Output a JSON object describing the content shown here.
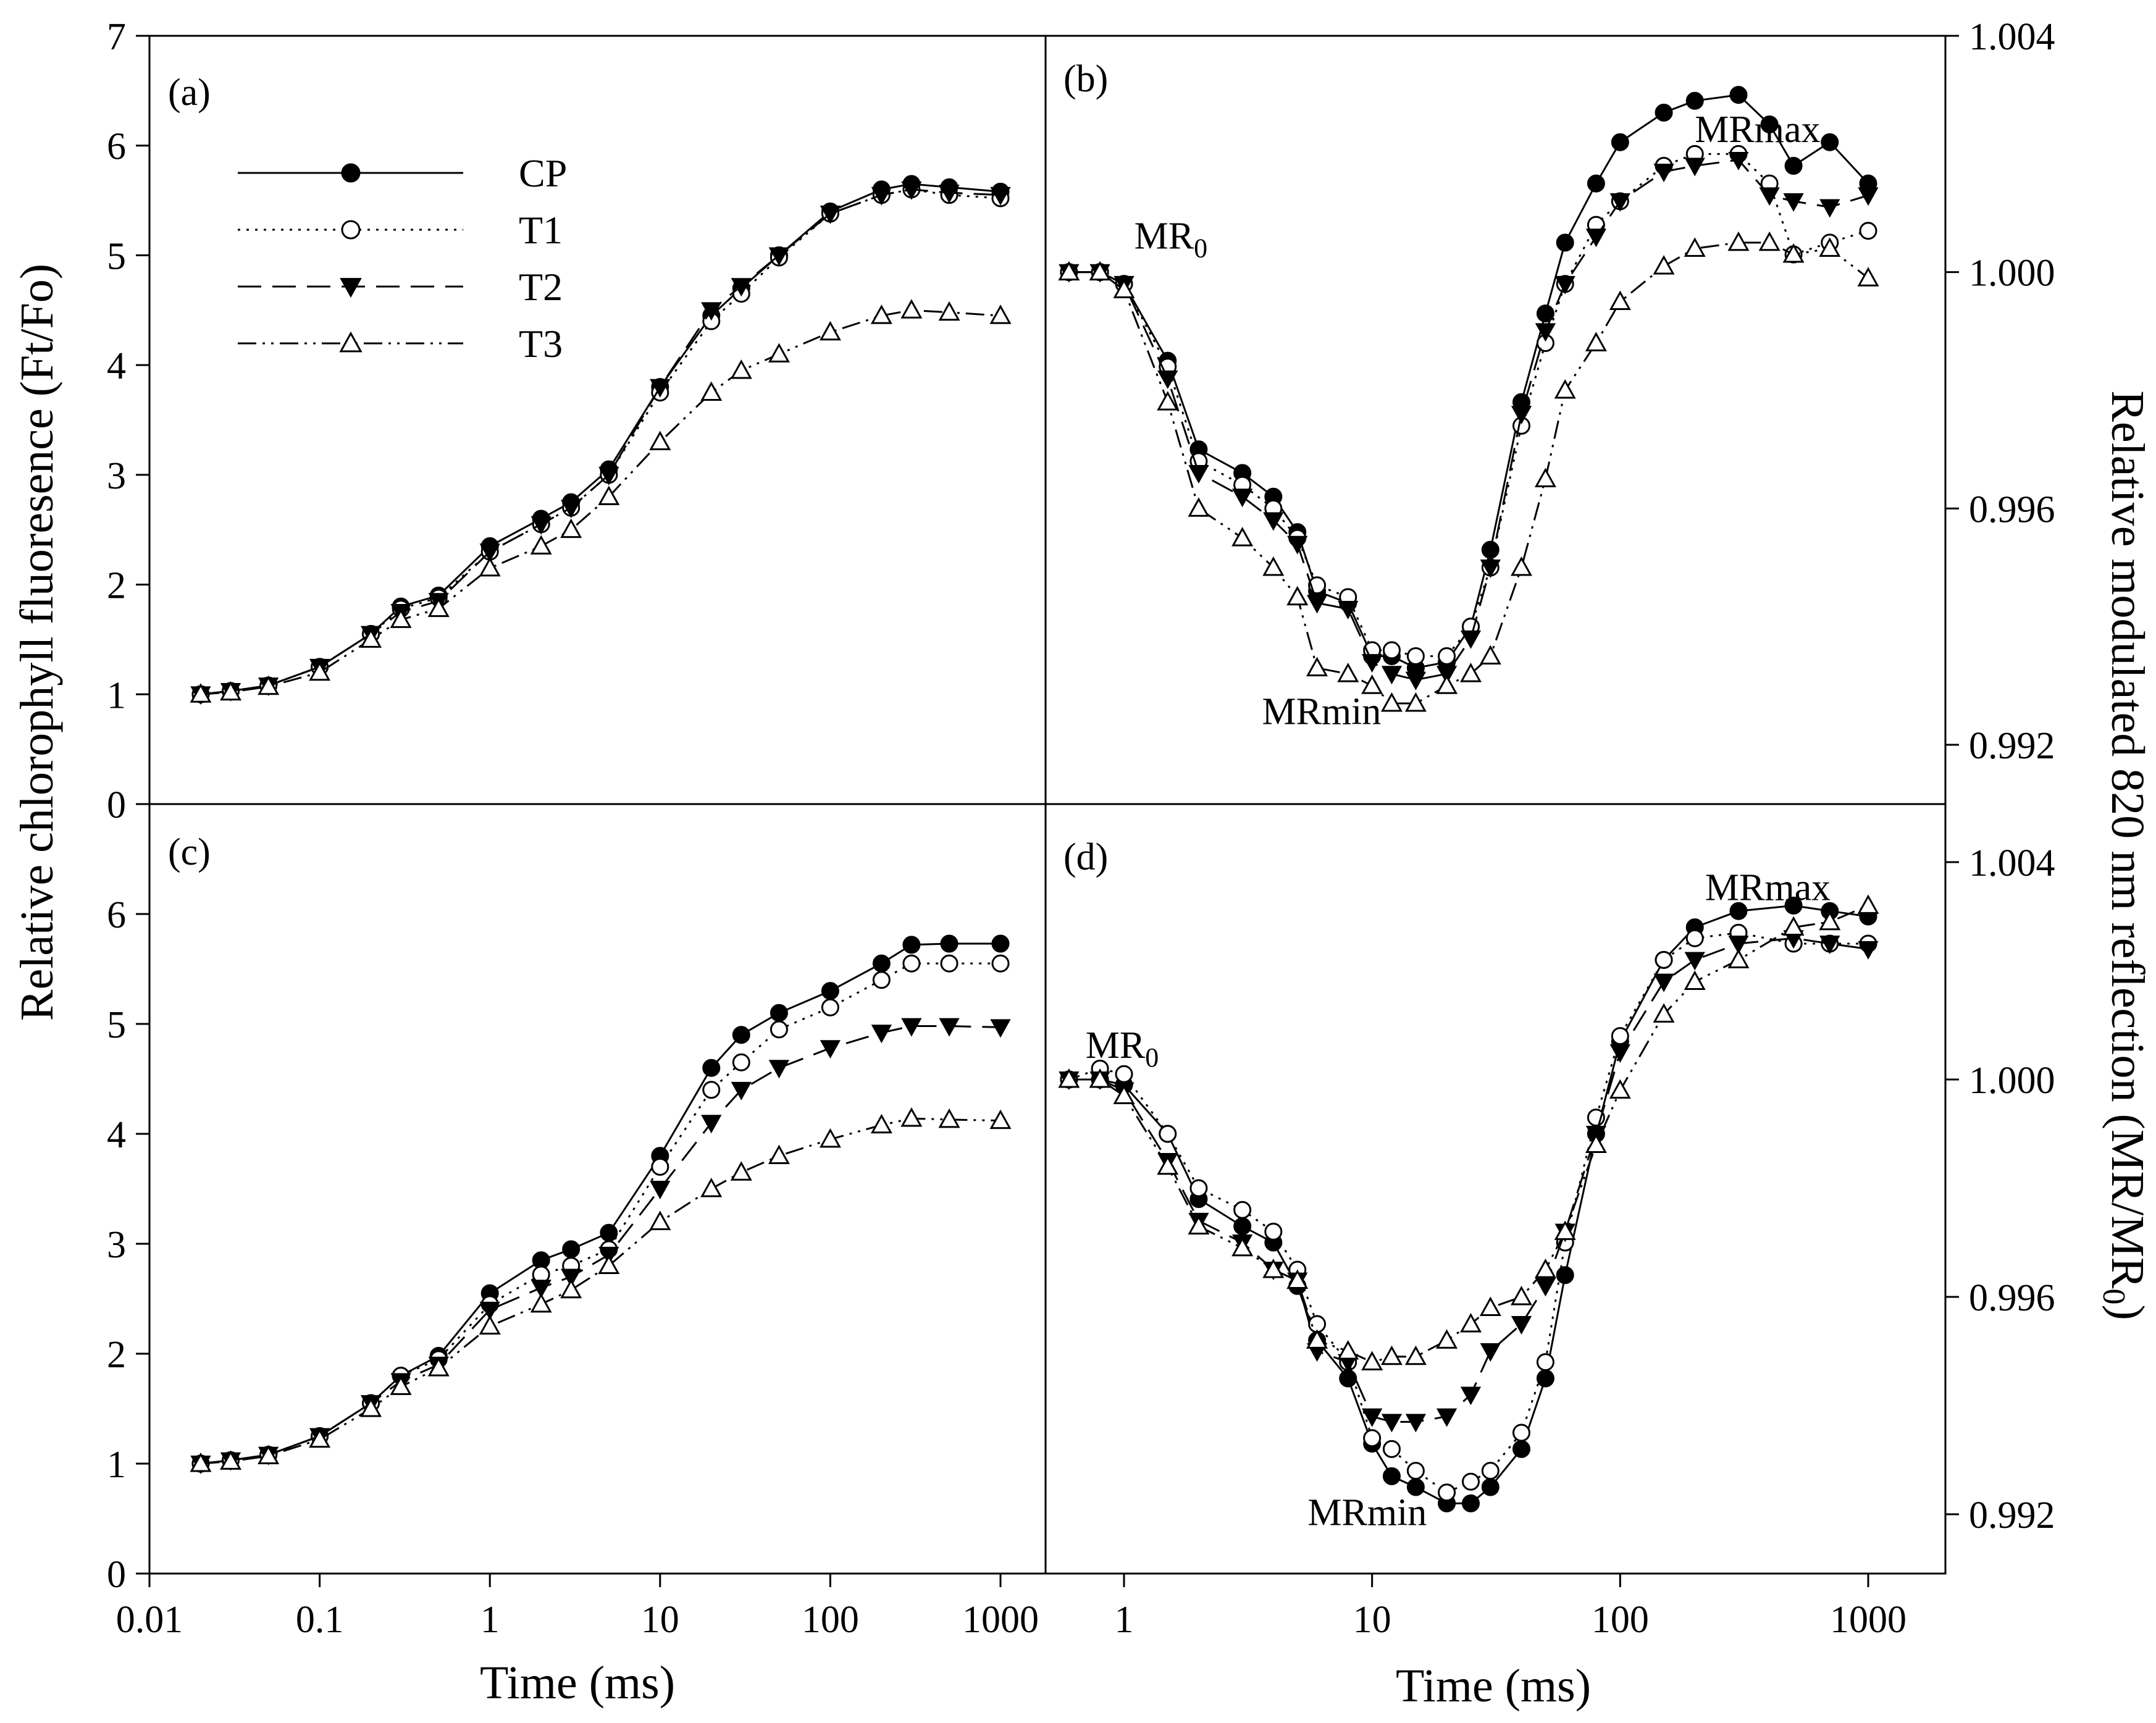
{
  "figure": {
    "left_ylabel": "Relative chlorophyll fluoresence (Ft/Fo)",
    "right_ylabel_main": "Relative modulated 820 nm reflection (MR/MR",
    "right_ylabel_sub": "0",
    "right_ylabel_close": ")",
    "xlabel": "Time (ms)"
  },
  "legend": [
    {
      "name": "CP",
      "marker": "filled-circle",
      "line": "solid"
    },
    {
      "name": "T1",
      "marker": "open-circle",
      "line": "dotted"
    },
    {
      "name": "T2",
      "marker": "filled-triangle-down",
      "line": "dashed"
    },
    {
      "name": "T3",
      "marker": "open-triangle-up",
      "line": "dash-dot-dot"
    }
  ],
  "colors": {
    "ink": "#000000",
    "background": "#ffffff"
  },
  "chart_data": [
    {
      "panel": "(a)",
      "type": "line",
      "xscale": "log",
      "xlim": [
        0.01,
        1500
      ],
      "ylim": [
        0,
        7
      ],
      "yticks": [
        "0",
        "1",
        "2",
        "3",
        "4",
        "5",
        "6",
        "7"
      ],
      "xticks": [
        "0.01",
        "0.1",
        "1",
        "10",
        "100",
        "1000"
      ],
      "ylabel": "Relative chlorophyll fluoresence (Ft/Fo)",
      "xlabel": "Time (ms)",
      "annotations": [],
      "series": [
        {
          "name": "CP",
          "x": [
            0.02,
            0.03,
            0.05,
            0.1,
            0.2,
            0.3,
            0.5,
            1,
            2,
            3,
            5,
            10,
            20,
            30,
            50,
            100,
            200,
            300,
            500,
            1000
          ],
          "y": [
            1.0,
            1.03,
            1.08,
            1.25,
            1.55,
            1.8,
            1.9,
            2.35,
            2.6,
            2.75,
            3.05,
            3.8,
            4.45,
            4.7,
            5.0,
            5.4,
            5.6,
            5.65,
            5.62,
            5.58
          ]
        },
        {
          "name": "T1",
          "x": [
            0.02,
            0.03,
            0.05,
            0.1,
            0.2,
            0.3,
            0.5,
            1,
            2,
            3,
            5,
            10,
            20,
            30,
            50,
            100,
            200,
            300,
            500,
            1000
          ],
          "y": [
            1.0,
            1.03,
            1.08,
            1.25,
            1.55,
            1.78,
            1.88,
            2.3,
            2.55,
            2.7,
            3.0,
            3.75,
            4.4,
            4.65,
            4.98,
            5.38,
            5.55,
            5.6,
            5.55,
            5.52
          ]
        },
        {
          "name": "T2",
          "x": [
            0.02,
            0.03,
            0.05,
            0.1,
            0.2,
            0.3,
            0.5,
            1,
            2,
            3,
            5,
            10,
            20,
            30,
            50,
            100,
            200,
            300,
            500,
            1000
          ],
          "y": [
            1.0,
            1.03,
            1.08,
            1.25,
            1.55,
            1.75,
            1.85,
            2.3,
            2.55,
            2.7,
            3.0,
            3.8,
            4.5,
            4.72,
            5.0,
            5.38,
            5.55,
            5.6,
            5.57,
            5.55
          ]
        },
        {
          "name": "T3",
          "x": [
            0.02,
            0.03,
            0.05,
            0.1,
            0.2,
            0.3,
            0.5,
            1,
            2,
            3,
            5,
            10,
            20,
            30,
            50,
            100,
            200,
            300,
            500,
            1000
          ],
          "y": [
            1.0,
            1.02,
            1.07,
            1.2,
            1.5,
            1.68,
            1.78,
            2.15,
            2.35,
            2.5,
            2.8,
            3.3,
            3.75,
            3.95,
            4.1,
            4.3,
            4.45,
            4.5,
            4.48,
            4.45
          ]
        }
      ]
    },
    {
      "panel": "(b)",
      "type": "line",
      "xscale": "log",
      "xlim": [
        0.5,
        1500
      ],
      "ylim": [
        0.991,
        1.004
      ],
      "yticks": [
        "0.992",
        "0.996",
        "1.000",
        "1.004"
      ],
      "xticks": [
        "1",
        "10",
        "100",
        "1000"
      ],
      "annotations": [
        {
          "text": "MR",
          "sub": "0",
          "x": 1.1,
          "y": 1.0004
        },
        {
          "text": "MRmin",
          "x": 3.6,
          "y": 0.99235
        },
        {
          "text": "MRmax",
          "x": 200,
          "y": 1.0022
        }
      ],
      "series": [
        {
          "name": "CP",
          "x": [
            0.6,
            0.8,
            1,
            1.5,
            2,
            3,
            4,
            5,
            6,
            8,
            10,
            12,
            15,
            20,
            25,
            30,
            40,
            50,
            60,
            80,
            100,
            150,
            200,
            300,
            400,
            500,
            700,
            1000
          ],
          "y": [
            1.0,
            1.0,
            0.9998,
            0.9985,
            0.997,
            0.9966,
            0.9962,
            0.9956,
            0.9946,
            0.9944,
            0.9935,
            0.9935,
            0.9933,
            0.9934,
            0.994,
            0.9953,
            0.9978,
            0.9993,
            1.0005,
            1.0015,
            1.0022,
            1.0027,
            1.0029,
            1.003,
            1.0025,
            1.0018,
            1.0022,
            1.0015
          ]
        },
        {
          "name": "T1",
          "x": [
            0.6,
            0.8,
            1,
            1.5,
            2,
            3,
            4,
            5,
            6,
            8,
            10,
            12,
            15,
            20,
            25,
            30,
            40,
            50,
            60,
            80,
            100,
            150,
            200,
            300,
            400,
            500,
            700,
            1000
          ],
          "y": [
            1.0,
            1.0,
            0.9998,
            0.9984,
            0.9968,
            0.9964,
            0.996,
            0.9955,
            0.9947,
            0.9945,
            0.9936,
            0.9936,
            0.9935,
            0.9935,
            0.994,
            0.995,
            0.9974,
            0.9988,
            0.9998,
            1.0008,
            1.0012,
            1.0018,
            1.002,
            1.002,
            1.0015,
            1.0003,
            1.0005,
            1.0007
          ]
        },
        {
          "name": "T2",
          "x": [
            0.6,
            0.8,
            1,
            1.5,
            2,
            3,
            4,
            5,
            6,
            8,
            10,
            12,
            15,
            20,
            25,
            30,
            40,
            50,
            60,
            80,
            100,
            150,
            200,
            300,
            400,
            500,
            700,
            1000
          ],
          "y": [
            1.0,
            1.0,
            0.9998,
            0.9982,
            0.9966,
            0.9962,
            0.9958,
            0.9954,
            0.9944,
            0.9943,
            0.9934,
            0.9932,
            0.9931,
            0.9932,
            0.9938,
            0.995,
            0.9976,
            0.999,
            0.9998,
            1.0006,
            1.0012,
            1.0017,
            1.0018,
            1.0019,
            1.0013,
            1.0012,
            1.0011,
            1.0013
          ]
        },
        {
          "name": "T3",
          "x": [
            0.6,
            0.8,
            1,
            1.5,
            2,
            3,
            4,
            5,
            6,
            8,
            10,
            12,
            15,
            20,
            25,
            30,
            40,
            50,
            60,
            80,
            100,
            150,
            200,
            300,
            400,
            500,
            700,
            1000
          ],
          "y": [
            1.0,
            1.0,
            0.9997,
            0.9978,
            0.996,
            0.9955,
            0.995,
            0.9945,
            0.9933,
            0.9932,
            0.993,
            0.9927,
            0.9927,
            0.993,
            0.9932,
            0.9935,
            0.995,
            0.9965,
            0.998,
            0.9988,
            0.9995,
            1.0001,
            1.0004,
            1.0005,
            1.0005,
            1.0003,
            1.0004,
            0.9999
          ]
        }
      ]
    },
    {
      "panel": "(c)",
      "type": "line",
      "xscale": "log",
      "xlim": [
        0.01,
        1500
      ],
      "ylim": [
        0,
        7
      ],
      "yticks": [
        "0",
        "1",
        "2",
        "3",
        "4",
        "5",
        "6"
      ],
      "xticks": [
        "0.01",
        "0.1",
        "1",
        "10",
        "100",
        "1000"
      ],
      "annotations": [],
      "series": [
        {
          "name": "CP",
          "x": [
            0.02,
            0.03,
            0.05,
            0.1,
            0.2,
            0.3,
            0.5,
            1,
            2,
            3,
            5,
            10,
            20,
            30,
            50,
            100,
            200,
            300,
            500,
            1000
          ],
          "y": [
            1.0,
            1.03,
            1.08,
            1.25,
            1.55,
            1.8,
            1.98,
            2.55,
            2.85,
            2.95,
            3.1,
            3.8,
            4.6,
            4.9,
            5.1,
            5.3,
            5.55,
            5.72,
            5.73,
            5.73
          ]
        },
        {
          "name": "T1",
          "x": [
            0.02,
            0.03,
            0.05,
            0.1,
            0.2,
            0.3,
            0.5,
            1,
            2,
            3,
            5,
            10,
            20,
            30,
            50,
            100,
            200,
            300,
            500,
            1000
          ],
          "y": [
            1.0,
            1.03,
            1.08,
            1.25,
            1.55,
            1.8,
            1.95,
            2.45,
            2.72,
            2.8,
            2.95,
            3.7,
            4.4,
            4.65,
            4.95,
            5.15,
            5.4,
            5.55,
            5.55,
            5.55
          ]
        },
        {
          "name": "T2",
          "x": [
            0.02,
            0.03,
            0.05,
            0.1,
            0.2,
            0.3,
            0.5,
            1,
            2,
            3,
            5,
            10,
            20,
            30,
            50,
            100,
            200,
            300,
            500,
            1000
          ],
          "y": [
            1.0,
            1.03,
            1.08,
            1.25,
            1.55,
            1.75,
            1.9,
            2.4,
            2.6,
            2.7,
            2.9,
            3.5,
            4.1,
            4.4,
            4.6,
            4.78,
            4.92,
            4.98,
            4.98,
            4.97
          ]
        },
        {
          "name": "T3",
          "x": [
            0.02,
            0.03,
            0.05,
            0.1,
            0.2,
            0.3,
            0.5,
            1,
            2,
            3,
            5,
            10,
            20,
            30,
            50,
            100,
            200,
            300,
            500,
            1000
          ],
          "y": [
            1.0,
            1.02,
            1.07,
            1.22,
            1.5,
            1.7,
            1.87,
            2.25,
            2.45,
            2.58,
            2.8,
            3.2,
            3.5,
            3.65,
            3.8,
            3.95,
            4.08,
            4.14,
            4.13,
            4.12
          ]
        }
      ]
    },
    {
      "panel": "(d)",
      "type": "line",
      "xscale": "log",
      "xlim": [
        0.5,
        1500
      ],
      "ylim": [
        0.991,
        1.0045
      ],
      "yticks": [
        "0.992",
        "0.996",
        "1.000",
        "1.004"
      ],
      "xticks": [
        "1",
        "10",
        "100",
        "1000"
      ],
      "annotations": [
        {
          "text": "MR",
          "sub": "0",
          "x": 0.7,
          "y": 1.0004
        },
        {
          "text": "MRmin",
          "x": 5.5,
          "y": 0.9918
        },
        {
          "text": "MRmax",
          "x": 220,
          "y": 1.0033
        }
      ],
      "series": [
        {
          "name": "CP",
          "x": [
            0.6,
            0.8,
            1,
            1.5,
            2,
            3,
            4,
            5,
            6,
            8,
            10,
            12,
            15,
            20,
            25,
            30,
            40,
            50,
            60,
            80,
            100,
            150,
            200,
            300,
            500,
            700,
            1000
          ],
          "y": [
            1.0,
            1.0,
            0.9999,
            0.999,
            0.9978,
            0.9973,
            0.997,
            0.9962,
            0.9952,
            0.9945,
            0.9933,
            0.9927,
            0.9925,
            0.9922,
            0.9922,
            0.9925,
            0.9932,
            0.9945,
            0.9964,
            0.999,
            1.0007,
            1.0022,
            1.0028,
            1.0031,
            1.0032,
            1.0031,
            1.003
          ]
        },
        {
          "name": "T1",
          "x": [
            0.6,
            0.8,
            1,
            1.5,
            2,
            3,
            4,
            5,
            6,
            8,
            10,
            12,
            15,
            20,
            25,
            30,
            40,
            50,
            60,
            80,
            100,
            150,
            200,
            300,
            500,
            700,
            1000
          ],
          "y": [
            1.0,
            1.0002,
            1.0001,
            0.999,
            0.998,
            0.9976,
            0.9972,
            0.9965,
            0.9955,
            0.9948,
            0.9934,
            0.9932,
            0.9928,
            0.9924,
            0.9926,
            0.9928,
            0.9935,
            0.9948,
            0.997,
            0.9993,
            1.0008,
            1.0022,
            1.0026,
            1.0027,
            1.0025,
            1.0025,
            1.0025
          ]
        },
        {
          "name": "T2",
          "x": [
            0.6,
            0.8,
            1,
            1.5,
            2,
            3,
            4,
            5,
            6,
            8,
            10,
            12,
            15,
            20,
            25,
            30,
            40,
            50,
            60,
            80,
            100,
            150,
            200,
            300,
            500,
            700,
            1000
          ],
          "y": [
            1.0,
            1.0,
            0.9998,
            0.9985,
            0.9974,
            0.997,
            0.9965,
            0.9963,
            0.995,
            0.9948,
            0.9938,
            0.9937,
            0.9937,
            0.9938,
            0.9942,
            0.995,
            0.9955,
            0.9962,
            0.9972,
            0.999,
            1.0005,
            1.0018,
            1.0022,
            1.0025,
            1.0026,
            1.0025,
            1.0024
          ]
        },
        {
          "name": "T3",
          "x": [
            0.6,
            0.8,
            1,
            1.5,
            2,
            3,
            4,
            5,
            6,
            8,
            10,
            12,
            15,
            20,
            25,
            30,
            40,
            50,
            60,
            80,
            100,
            150,
            200,
            300,
            500,
            700,
            1000
          ],
          "y": [
            1.0,
            1.0,
            0.9997,
            0.9984,
            0.9973,
            0.9969,
            0.9965,
            0.9963,
            0.9952,
            0.995,
            0.9948,
            0.9949,
            0.9949,
            0.9952,
            0.9955,
            0.9958,
            0.996,
            0.9965,
            0.9972,
            0.9988,
            0.9998,
            1.0012,
            1.0018,
            1.0022,
            1.0028,
            1.0029,
            1.0032
          ]
        }
      ]
    }
  ]
}
